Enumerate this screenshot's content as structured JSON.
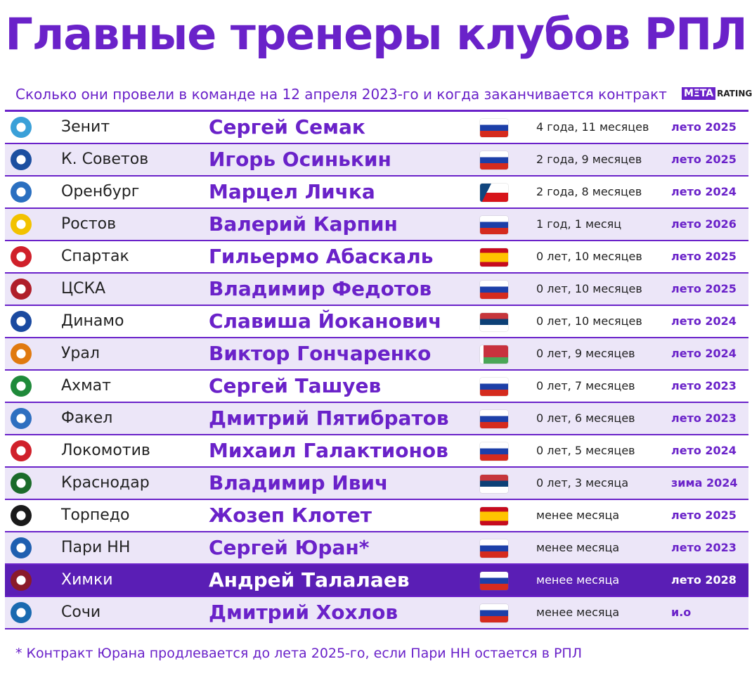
{
  "header": {
    "title": "Главные тренеры клубов РПЛ",
    "subtitle": "Сколько они провели в команде на 12 апреля 2023-го и когда заканчивается контракт",
    "logo_main": "MΞTA",
    "logo_sub": "RATINGS"
  },
  "table": {
    "rows": [
      [
        "Зенит",
        "Сергей Семак",
        "4 года, 11 месяцев",
        "лето 2025"
      ],
      [
        "К. Советов",
        "Игорь Осинькин",
        "2 года, 9 месяцев",
        "лето 2025"
      ],
      [
        "Оренбург",
        "Марцел Личка",
        "2 года, 8 месяцев",
        "лето 2024"
      ],
      [
        "Ростов",
        "Валерий Карпин",
        "1 год, 1 месяц",
        "лето 2026"
      ],
      [
        "Спартак",
        "Гильермо Абаскаль",
        "0 лет, 10 месяцев",
        "лето 2025"
      ],
      [
        "ЦСКА",
        "Владимир Федотов",
        "0 лет, 10 месяцев",
        "лето 2025"
      ],
      [
        "Динамо",
        "Славиша Йоканович",
        "0 лет, 10 месяцев",
        "лето 2024"
      ],
      [
        "Урал",
        "Виктор Гончаренко",
        "0 лет, 9 месяцев",
        "лето 2024"
      ],
      [
        "Ахмат",
        "Сергей Ташуев",
        "0 лет, 7 месяцев",
        "лето 2023"
      ],
      [
        "Факел",
        "Дмитрий Пятибратов",
        "0 лет, 6 месяцев",
        "лето 2023"
      ],
      [
        "Локомотив",
        "Михаил Галактионов",
        "0 лет, 5 месяцев",
        "лето 2024"
      ],
      [
        "Краснодар",
        "Владимир Ивич",
        "0 лет, 3 месяца",
        "зима 2024"
      ],
      [
        "Торпедо",
        "Жозеп Клотет",
        "менее месяца",
        "лето 2025"
      ],
      [
        "Пари НН",
        "Сергей Юран*",
        "менее месяца",
        "лето 2023"
      ],
      [
        "Химки",
        "Андрей Талалаев",
        "менее месяца",
        "лето 2028"
      ],
      [
        "Сочи",
        "Дмитрий Хохлов",
        "менее месяца",
        "и.о"
      ]
    ]
  },
  "footnote": "* Контракт Юрана продлевается до лета 2025-го, если Пари НН остается в РПЛ"
}
